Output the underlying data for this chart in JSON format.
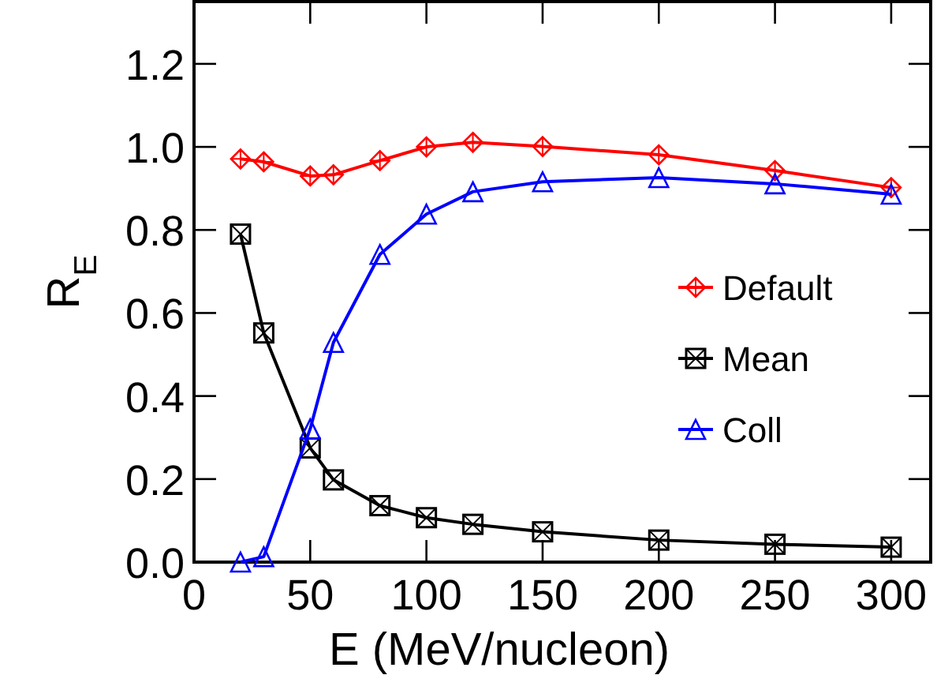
{
  "chart_data": {
    "type": "line",
    "xlabel": "E (MeV/nucleon)",
    "ylabel": "R$_{E}$",
    "x": [
      20,
      30,
      50,
      60,
      80,
      100,
      120,
      150,
      200,
      250,
      300
    ],
    "series": [
      {
        "name": "Default",
        "color": "#ff0000",
        "marker": "diamond",
        "values": [
          0.971,
          0.964,
          0.93,
          0.933,
          0.967,
          1.0,
          1.011,
          1.001,
          0.981,
          0.943,
          0.902
        ]
      },
      {
        "name": "Mean",
        "color": "#000000",
        "marker": "square",
        "values": [
          0.79,
          0.552,
          0.275,
          0.198,
          0.136,
          0.107,
          0.091,
          0.073,
          0.053,
          0.043,
          0.036
        ]
      },
      {
        "name": "Coll",
        "color": "#0000ff",
        "marker": "triangle",
        "values": [
          0.0,
          0.013,
          0.321,
          0.529,
          0.741,
          0.838,
          0.892,
          0.916,
          0.926,
          0.911,
          0.886
        ]
      }
    ],
    "xlim": [
      0,
      317
    ],
    "xticks": [
      0,
      50,
      100,
      150,
      200,
      250,
      300
    ],
    "ylim": [
      0,
      1.35
    ],
    "yticks": [
      {
        "value": 0,
        "label": "0.0"
      },
      0.2,
      0.4,
      0.6,
      0.8,
      {
        "value": 1,
        "label": "1.0"
      },
      1.2
    ],
    "grid": false,
    "legend": "right"
  }
}
